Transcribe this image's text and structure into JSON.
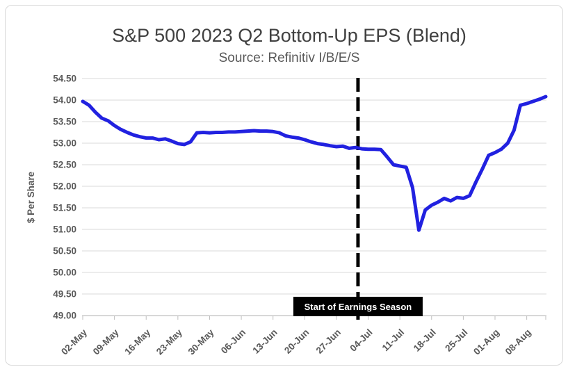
{
  "chart_data": {
    "type": "line",
    "title": "S&P 500 2023 Q2 Bottom-Up EPS (Blend)",
    "subtitle": "Source: Refinitiv I/B/E/S",
    "ylabel": "$ Per Share",
    "ylim": [
      49.0,
      54.5
    ],
    "ytick_step": 0.5,
    "ytick_labels": [
      "54.50",
      "54.00",
      "53.50",
      "53.00",
      "52.50",
      "52.00",
      "51.50",
      "51.00",
      "50.50",
      "50.00",
      "49.50",
      "49.00"
    ],
    "xtick_every": 5,
    "xtick_labels": [
      "02-May",
      "09-May",
      "16-May",
      "23-May",
      "30-May",
      "06-Jun",
      "13-Jun",
      "20-Jun",
      "27-Jun",
      "04-Jul",
      "11-Jul",
      "18-Jul",
      "25-Jul",
      "01-Aug",
      "08-Aug"
    ],
    "grid": true,
    "legend": "none",
    "line_color": "#2121E0",
    "label_color": "#595959",
    "grid_color": "#D9D9D9",
    "axis_color": "#BFBFBF",
    "categories": [
      "02-May",
      "03-May",
      "04-May",
      "05-May",
      "08-May",
      "09-May",
      "10-May",
      "11-May",
      "12-May",
      "15-May",
      "16-May",
      "17-May",
      "18-May",
      "19-May",
      "22-May",
      "23-May",
      "24-May",
      "25-May",
      "26-May",
      "29-May",
      "30-May",
      "31-May",
      "01-Jun",
      "02-Jun",
      "05-Jun",
      "06-Jun",
      "07-Jun",
      "08-Jun",
      "09-Jun",
      "12-Jun",
      "13-Jun",
      "14-Jun",
      "15-Jun",
      "16-Jun",
      "19-Jun",
      "20-Jun",
      "21-Jun",
      "22-Jun",
      "23-Jun",
      "26-Jun",
      "27-Jun",
      "28-Jun",
      "29-Jun",
      "30-Jun",
      "03-Jul",
      "04-Jul",
      "05-Jul",
      "06-Jul",
      "07-Jul",
      "10-Jul",
      "11-Jul",
      "12-Jul",
      "13-Jul",
      "14-Jul",
      "17-Jul",
      "18-Jul",
      "19-Jul",
      "20-Jul",
      "21-Jul",
      "24-Jul",
      "25-Jul",
      "26-Jul",
      "27-Jul",
      "28-Jul",
      "31-Jul",
      "01-Aug",
      "02-Aug",
      "03-Aug",
      "04-Aug",
      "07-Aug",
      "08-Aug",
      "09-Aug",
      "10-Aug",
      "11-Aug"
    ],
    "values": [
      53.97,
      53.88,
      53.72,
      53.58,
      53.52,
      53.41,
      53.32,
      53.25,
      53.19,
      53.15,
      53.12,
      53.12,
      53.08,
      53.1,
      53.05,
      52.99,
      52.97,
      53.03,
      53.24,
      53.25,
      53.24,
      53.25,
      53.25,
      53.26,
      53.26,
      53.27,
      53.28,
      53.29,
      53.28,
      53.28,
      53.27,
      53.24,
      53.17,
      53.14,
      53.12,
      53.08,
      53.03,
      52.99,
      52.97,
      52.94,
      52.92,
      52.93,
      52.88,
      52.9,
      52.87,
      52.86,
      52.86,
      52.85,
      52.68,
      52.5,
      52.47,
      52.44,
      51.97,
      50.98,
      51.45,
      51.56,
      51.63,
      51.72,
      51.66,
      51.74,
      51.72,
      51.78,
      52.1,
      52.4,
      52.72,
      52.78,
      52.86,
      53.0,
      53.3,
      53.88,
      53.92,
      53.97,
      54.02,
      54.08
    ],
    "annotation": {
      "label": "Start of Earnings Season",
      "x_index": 43.4,
      "line_style": "dashed",
      "line_color": "#000000",
      "bg_color": "#000000",
      "text_color": "#FFFFFF"
    }
  }
}
